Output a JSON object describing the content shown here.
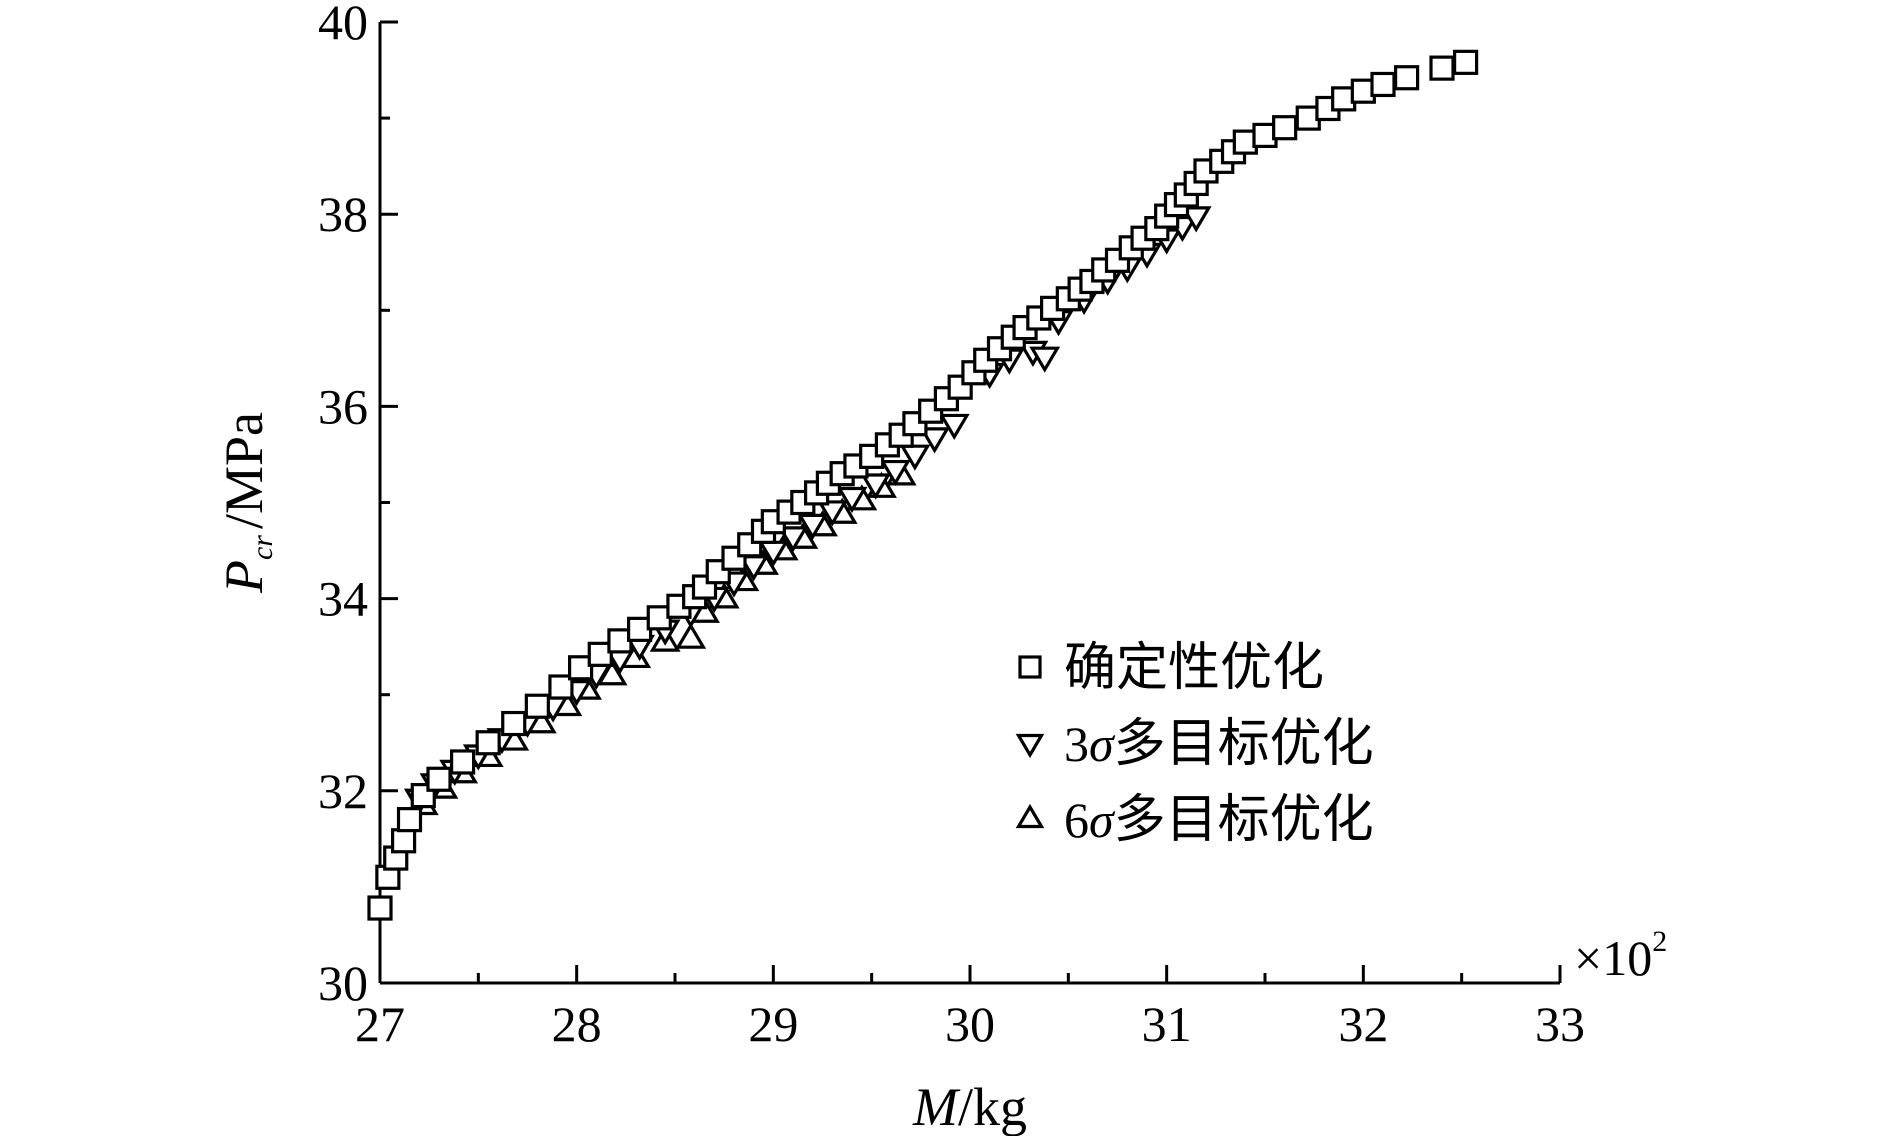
{
  "chart_data": {
    "type": "scatter",
    "title": "",
    "xlabel": {
      "var": "M",
      "unit": "/kg"
    },
    "ylabel": {
      "var": "P",
      "sub": "cr",
      "unit": "/MPa"
    },
    "x_multiplier": {
      "sign": "×10",
      "exp": "2"
    },
    "xlim": [
      27,
      33
    ],
    "ylim": [
      30,
      40
    ],
    "x_ticks": [
      "27",
      "28",
      "29",
      "30",
      "31",
      "32",
      "33"
    ],
    "y_ticks": [
      "30",
      "32",
      "34",
      "36",
      "38",
      "40"
    ],
    "grid": false,
    "legend_position": "lower-right",
    "series": [
      {
        "name": "确定性优化",
        "name_prefix": "",
        "name_sigma": "",
        "name_suffix": "确定性优化",
        "marker": "square",
        "points": [
          [
            27.0,
            30.78
          ],
          [
            27.04,
            31.1
          ],
          [
            27.08,
            31.3
          ],
          [
            27.12,
            31.48
          ],
          [
            27.15,
            31.7
          ],
          [
            27.22,
            31.95
          ],
          [
            27.3,
            32.12
          ],
          [
            27.42,
            32.3
          ],
          [
            27.55,
            32.5
          ],
          [
            27.68,
            32.7
          ],
          [
            27.8,
            32.88
          ],
          [
            27.92,
            33.08
          ],
          [
            28.02,
            33.28
          ],
          [
            28.12,
            33.42
          ],
          [
            28.22,
            33.56
          ],
          [
            28.32,
            33.68
          ],
          [
            28.42,
            33.8
          ],
          [
            28.52,
            33.92
          ],
          [
            28.6,
            34.02
          ],
          [
            28.65,
            34.12
          ],
          [
            28.72,
            34.28
          ],
          [
            28.8,
            34.42
          ],
          [
            28.88,
            34.56
          ],
          [
            28.95,
            34.7
          ],
          [
            29.0,
            34.8
          ],
          [
            29.08,
            34.9
          ],
          [
            29.15,
            35.0
          ],
          [
            29.22,
            35.1
          ],
          [
            29.28,
            35.2
          ],
          [
            29.35,
            35.3
          ],
          [
            29.42,
            35.38
          ],
          [
            29.5,
            35.48
          ],
          [
            29.58,
            35.6
          ],
          [
            29.65,
            35.7
          ],
          [
            29.72,
            35.82
          ],
          [
            29.8,
            35.95
          ],
          [
            29.88,
            36.08
          ],
          [
            29.95,
            36.2
          ],
          [
            30.02,
            36.35
          ],
          [
            30.08,
            36.48
          ],
          [
            30.15,
            36.6
          ],
          [
            30.22,
            36.72
          ],
          [
            30.28,
            36.82
          ],
          [
            30.35,
            36.92
          ],
          [
            30.42,
            37.02
          ],
          [
            30.5,
            37.12
          ],
          [
            30.56,
            37.22
          ],
          [
            30.62,
            37.3
          ],
          [
            30.68,
            37.42
          ],
          [
            30.75,
            37.52
          ],
          [
            30.82,
            37.65
          ],
          [
            30.88,
            37.75
          ],
          [
            30.95,
            37.85
          ],
          [
            31.0,
            37.98
          ],
          [
            31.05,
            38.1
          ],
          [
            31.1,
            38.2
          ],
          [
            31.15,
            38.32
          ],
          [
            31.2,
            38.45
          ],
          [
            31.28,
            38.55
          ],
          [
            31.34,
            38.65
          ],
          [
            31.4,
            38.75
          ],
          [
            31.5,
            38.82
          ],
          [
            31.6,
            38.9
          ],
          [
            31.72,
            39.0
          ],
          [
            31.82,
            39.1
          ],
          [
            31.9,
            39.2
          ],
          [
            32.0,
            39.28
          ],
          [
            32.1,
            39.35
          ],
          [
            32.22,
            39.42
          ],
          [
            32.4,
            39.52
          ],
          [
            32.52,
            39.58
          ]
        ]
      },
      {
        "name": "3σ多目标优化",
        "name_prefix": "3",
        "name_sigma": "σ",
        "name_suffix": "多目标优化",
        "marker": "triangle-down",
        "points": [
          [
            27.2,
            31.92
          ],
          [
            27.28,
            32.08
          ],
          [
            27.38,
            32.22
          ],
          [
            27.5,
            32.38
          ],
          [
            27.62,
            32.55
          ],
          [
            27.75,
            32.72
          ],
          [
            27.88,
            32.88
          ],
          [
            28.0,
            33.05
          ],
          [
            28.1,
            33.22
          ],
          [
            28.22,
            33.38
          ],
          [
            28.32,
            33.52
          ],
          [
            28.45,
            33.68
          ],
          [
            28.58,
            33.86
          ],
          [
            28.7,
            34.02
          ],
          [
            28.8,
            34.18
          ],
          [
            28.9,
            34.35
          ],
          [
            29.0,
            34.5
          ],
          [
            29.1,
            34.65
          ],
          [
            29.2,
            34.78
          ],
          [
            29.3,
            34.92
          ],
          [
            29.4,
            35.06
          ],
          [
            29.52,
            35.2
          ],
          [
            29.62,
            35.34
          ],
          [
            29.72,
            35.5
          ],
          [
            29.82,
            35.68
          ],
          [
            29.92,
            35.82
          ],
          [
            30.1,
            36.35
          ],
          [
            30.2,
            36.5
          ],
          [
            30.32,
            36.58
          ],
          [
            30.38,
            36.52
          ],
          [
            30.45,
            36.9
          ],
          [
            30.58,
            37.12
          ],
          [
            30.7,
            37.32
          ],
          [
            30.8,
            37.45
          ],
          [
            30.9,
            37.6
          ],
          [
            31.0,
            37.75
          ],
          [
            31.08,
            37.88
          ],
          [
            31.15,
            37.98
          ]
        ]
      },
      {
        "name": "6σ多目标优化",
        "name_prefix": "6",
        "name_sigma": "σ",
        "name_suffix": "多目标优化",
        "marker": "triangle-up",
        "points": [
          [
            27.22,
            31.85
          ],
          [
            27.32,
            32.02
          ],
          [
            27.42,
            32.18
          ],
          [
            27.55,
            32.35
          ],
          [
            27.68,
            32.52
          ],
          [
            27.82,
            32.7
          ],
          [
            27.95,
            32.88
          ],
          [
            28.05,
            33.05
          ],
          [
            28.18,
            33.2
          ],
          [
            28.3,
            33.38
          ],
          [
            28.45,
            33.55
          ],
          [
            28.58,
            33.58
          ],
          [
            28.65,
            33.85
          ],
          [
            28.75,
            34.0
          ],
          [
            28.85,
            34.18
          ],
          [
            28.95,
            34.35
          ],
          [
            29.05,
            34.5
          ],
          [
            29.15,
            34.62
          ],
          [
            29.25,
            34.75
          ],
          [
            29.35,
            34.88
          ],
          [
            29.45,
            35.02
          ],
          [
            29.55,
            35.15
          ],
          [
            29.65,
            35.28
          ]
        ]
      }
    ]
  }
}
